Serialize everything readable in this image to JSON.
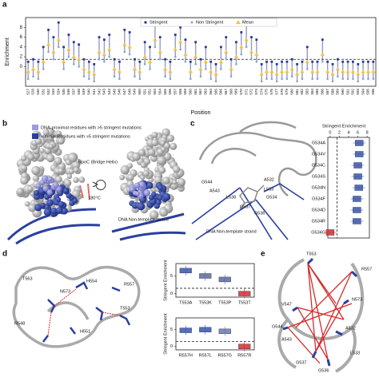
{
  "figure": {
    "panel_labels": [
      "a",
      "b",
      "c",
      "d",
      "e"
    ],
    "b_legend": [
      "DNA-proximal residues with >5 stringent mutations",
      "Internal Residues with >5 stringent mutations"
    ],
    "b_legend_colors": [
      "#9c9ce0",
      "#2a3f9f"
    ],
    "b_labels": [
      "RpoC (Bridge Helix)",
      "180°C",
      "DNA Non-template strand"
    ],
    "c_labels": [
      "G544",
      "A543",
      "L538",
      "G537",
      "G536",
      "G534",
      "L533",
      "A532",
      "DNA Non-template strand"
    ],
    "d_labels": [
      "T563",
      "H554",
      "R557",
      "N573",
      "T553",
      "R548",
      "H551"
    ],
    "e_labels": [
      "T553",
      "R557",
      "V547",
      "N573",
      "G544",
      "A543",
      "A532",
      "L533",
      "G537",
      "G536"
    ]
  },
  "chart_data": [
    {
      "type": "strip",
      "x_label": "Position",
      "y_label": "Enrichment",
      "categories": [
        "527",
        "528",
        "530",
        "531",
        "532",
        "533",
        "534",
        "535",
        "536",
        "537",
        "538",
        "539",
        "540",
        "541",
        "542",
        "543",
        "544",
        "545",
        "546",
        "547",
        "548",
        "549",
        "550",
        "551",
        "552",
        "553",
        "554",
        "555",
        "556",
        "557",
        "558",
        "559",
        "560",
        "561",
        "562",
        "563",
        "564",
        "565",
        "566",
        "567",
        "568",
        "569",
        "570",
        "571",
        "572",
        "573",
        "574",
        "575",
        "576",
        "577",
        "578",
        "579",
        "580",
        "581",
        "582",
        "583",
        "584",
        "585",
        "586",
        "587",
        "588",
        "589",
        "590",
        "591",
        "592",
        "593",
        "594",
        "595",
        "596"
      ],
      "series": [
        {
          "name": "Stringent",
          "color": "#2b3990",
          "values": [
            1,
            1.5,
            1,
            4,
            7.5,
            6,
            9,
            4,
            6.5,
            5,
            4.5,
            1.5,
            1,
            0.5,
            6,
            5.5,
            6.5,
            1.5,
            1,
            7.5,
            7,
            1.5,
            1,
            5,
            4,
            8.5,
            6,
            1.5,
            1,
            6.5,
            8,
            5.5,
            1,
            5,
            1.5,
            4,
            1,
            0.5,
            4,
            6,
            1.5,
            5,
            7,
            9,
            6,
            5.5,
            0.5,
            1,
            1,
            0.5,
            1,
            1,
            1.5,
            0.5,
            1,
            4,
            1,
            1,
            5.5,
            1,
            0.5,
            1.5,
            1,
            1,
            1,
            0.5,
            1,
            1,
            1
          ]
        },
        {
          "name": "Non Stringent",
          "color": "#8aa4c8",
          "values": [
            -2.5,
            -2,
            -2.5,
            -0.5,
            3,
            1.5,
            4,
            -0.5,
            2,
            0.5,
            0,
            -2,
            -2.5,
            -3,
            1.5,
            1,
            2,
            -2,
            -2.5,
            3,
            2.5,
            -2,
            -2.5,
            0.5,
            -0.5,
            4,
            1.5,
            -2,
            -2.5,
            2,
            3.5,
            1,
            -2.5,
            0.5,
            -2,
            -0.5,
            -2.5,
            -3,
            -0.5,
            1.5,
            -2,
            0.5,
            2.5,
            4,
            1.5,
            1,
            -3,
            -2.5,
            -2.5,
            -3,
            -2.5,
            -2.5,
            -2,
            -3,
            -2.5,
            -0.5,
            -2.5,
            -2.5,
            1,
            -2.5,
            -3,
            -2,
            -2.5,
            -2.5,
            -2.5,
            -3,
            -2.5,
            -2.5,
            -2.5
          ]
        },
        {
          "name": "Mean",
          "color": "#f5c342",
          "values": [
            -1,
            -0.5,
            -1,
            1,
            4.5,
            3,
            5.5,
            1,
            3.5,
            2,
            1.5,
            -0.5,
            -1,
            -1.5,
            3,
            2.5,
            3.5,
            -0.5,
            -1,
            4.5,
            4,
            -0.5,
            -1,
            2,
            1,
            5.5,
            3,
            -0.5,
            -1,
            3.5,
            5,
            2.5,
            -1,
            2,
            -0.5,
            1,
            -1,
            -1.5,
            1,
            3,
            -0.5,
            2,
            4,
            5.5,
            3,
            2.5,
            -1.5,
            -1,
            -1,
            -1.5,
            -1,
            -1,
            -0.5,
            -1.5,
            -1,
            1,
            -1,
            -1,
            2.5,
            -1,
            -1.5,
            -0.5,
            -1,
            -1,
            -1,
            -1.5,
            -1,
            -1,
            -1
          ]
        }
      ],
      "ylim": [
        -4,
        10
      ],
      "yticks": [
        0,
        2,
        4,
        6,
        8
      ],
      "threshold": 1.5,
      "legend": "top"
    },
    {
      "type": "strip",
      "orientation": "horizontal",
      "x_label": "Stringent Enrichment",
      "categories": [
        "G534A",
        "G534V",
        "G534C",
        "G534S",
        "G534N",
        "G534F",
        "G534D",
        "G534R",
        "G534G"
      ],
      "values": [
        6.3,
        6.3,
        6,
        6,
        6.2,
        5.8,
        5.8,
        5.8,
        0
      ],
      "colors": [
        "#3a56a8",
        "#3a56a8",
        "#3a56a8",
        "#3a56a8",
        "#3a56a8",
        "#3a56a8",
        "#3a56a8",
        "#3a56a8",
        "#d62b2b"
      ],
      "xlim": [
        -0.5,
        8.5
      ],
      "xticks": [
        0,
        2,
        4,
        6,
        8
      ],
      "threshold": 1.5
    },
    {
      "type": "strip",
      "y_label": "Stringent Enrichment",
      "categories": [
        "T553A",
        "T553K",
        "T553P",
        "T553T"
      ],
      "values": [
        6.5,
        5,
        4,
        0
      ],
      "colors": [
        "#3a56a8",
        "#5a6a9a",
        "#5a6a9a",
        "#d62b2b"
      ],
      "ylim": [
        -1,
        8.5
      ],
      "yticks": [
        0,
        5
      ],
      "threshold": 1.5
    },
    {
      "type": "strip",
      "y_label": "Stringent Enrichment",
      "categories": [
        "R557H",
        "R557L",
        "R557G",
        "R557R"
      ],
      "values": [
        4.8,
        5,
        4.5,
        0
      ],
      "colors": [
        "#3a56a8",
        "#3a56a8",
        "#6a78a8",
        "#d62b2b"
      ],
      "ylim": [
        -1,
        8.5
      ],
      "yticks": [
        0,
        5
      ],
      "threshold": 1.5
    }
  ]
}
